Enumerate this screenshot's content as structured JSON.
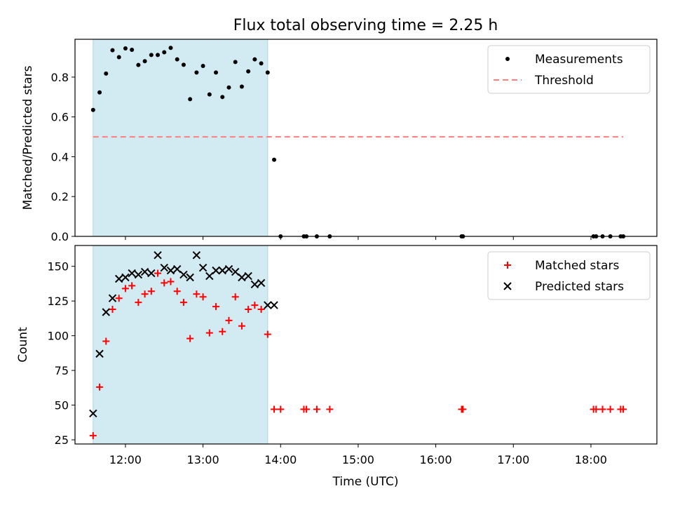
{
  "title": "Flux total observing time = 2.25 h",
  "x_label": "Time (UTC)",
  "x_ticks": [
    "12:00",
    "13:00",
    "14:00",
    "15:00",
    "16:00",
    "17:00",
    "18:00"
  ],
  "colors": {
    "shade": "#add8e6",
    "measurement": "#000000",
    "threshold": "#ff7f7f",
    "matched": "#ff0000",
    "predicted": "#000000"
  },
  "chart_data": [
    {
      "type": "scatter",
      "panel": "top",
      "ylabel": "Matched/Predicted stars",
      "ylim": [
        0,
        0.99
      ],
      "yticks": [
        0.0,
        0.2,
        0.4,
        0.6,
        0.8
      ],
      "xlim": [
        "11:21",
        "18:51"
      ],
      "shaded_interval": [
        "11:35",
        "13:50"
      ],
      "legend_position": "upper right",
      "grid": false,
      "series": [
        {
          "name": "Measurements",
          "marker": "dot",
          "points": [
            [
              "11:35",
              0.635
            ],
            [
              "11:40",
              0.723
            ],
            [
              "11:45",
              0.818
            ],
            [
              "11:50",
              0.935
            ],
            [
              "11:55",
              0.9
            ],
            [
              "12:00",
              0.944
            ],
            [
              "12:05",
              0.937
            ],
            [
              "12:10",
              0.861
            ],
            [
              "12:15",
              0.88
            ],
            [
              "12:20",
              0.911
            ],
            [
              "12:25",
              0.911
            ],
            [
              "12:30",
              0.925
            ],
            [
              "12:35",
              0.947
            ],
            [
              "12:40",
              0.889
            ],
            [
              "12:45",
              0.862
            ],
            [
              "12:50",
              0.689
            ],
            [
              "12:55",
              0.823
            ],
            [
              "13:00",
              0.856
            ],
            [
              "13:05",
              0.713
            ],
            [
              "13:10",
              0.823
            ],
            [
              "13:15",
              0.7
            ],
            [
              "13:20",
              0.748
            ],
            [
              "13:25",
              0.876
            ],
            [
              "13:30",
              0.752
            ],
            [
              "13:35",
              0.829
            ],
            [
              "13:40",
              0.889
            ],
            [
              "13:45",
              0.869
            ],
            [
              "13:50",
              0.823
            ],
            [
              "13:55",
              0.385
            ],
            [
              "14:00",
              0.0
            ],
            [
              "14:18",
              0.0
            ],
            [
              "14:20",
              0.0
            ],
            [
              "14:28",
              0.0
            ],
            [
              "14:38",
              0.0
            ],
            [
              "16:20",
              0.0
            ],
            [
              "16:21",
              0.0
            ],
            [
              "18:02",
              0.0
            ],
            [
              "18:04",
              0.0
            ],
            [
              "18:09",
              0.0
            ],
            [
              "18:15",
              0.0
            ],
            [
              "18:23",
              0.0
            ],
            [
              "18:25",
              0.0
            ]
          ]
        },
        {
          "name": "Threshold",
          "style": "dashed",
          "points": [
            [
              "11:35",
              0.5
            ],
            [
              "18:25",
              0.5
            ]
          ]
        }
      ]
    },
    {
      "type": "scatter",
      "panel": "bottom",
      "ylabel": "Count",
      "ylim": [
        22,
        165
      ],
      "yticks": [
        25,
        50,
        75,
        100,
        125,
        150
      ],
      "xlim": [
        "11:21",
        "18:51"
      ],
      "shaded_interval": [
        "11:35",
        "13:50"
      ],
      "legend_position": "upper right",
      "grid": false,
      "series": [
        {
          "name": "Matched stars",
          "marker": "plus",
          "points": [
            [
              "11:35",
              28
            ],
            [
              "11:40",
              63
            ],
            [
              "11:45",
              96
            ],
            [
              "11:50",
              119
            ],
            [
              "11:55",
              127
            ],
            [
              "12:00",
              134
            ],
            [
              "12:05",
              136
            ],
            [
              "12:10",
              124
            ],
            [
              "12:15",
              130
            ],
            [
              "12:20",
              132
            ],
            [
              "12:25",
              145
            ],
            [
              "12:30",
              138
            ],
            [
              "12:35",
              139
            ],
            [
              "12:40",
              132
            ],
            [
              "12:45",
              124
            ],
            [
              "12:50",
              98
            ],
            [
              "12:55",
              130
            ],
            [
              "13:00",
              128
            ],
            [
              "13:05",
              102
            ],
            [
              "13:10",
              121
            ],
            [
              "13:15",
              103
            ],
            [
              "13:20",
              111
            ],
            [
              "13:25",
              128
            ],
            [
              "13:30",
              107
            ],
            [
              "13:35",
              119
            ],
            [
              "13:40",
              122
            ],
            [
              "13:45",
              119
            ],
            [
              "13:50",
              101
            ],
            [
              "13:55",
              47
            ],
            [
              "14:00",
              47
            ],
            [
              "14:18",
              47
            ],
            [
              "14:20",
              47
            ],
            [
              "14:28",
              47
            ],
            [
              "14:38",
              47
            ],
            [
              "16:20",
              47
            ],
            [
              "16:21",
              47
            ],
            [
              "18:02",
              47
            ],
            [
              "18:04",
              47
            ],
            [
              "18:09",
              47
            ],
            [
              "18:15",
              47
            ],
            [
              "18:23",
              47
            ],
            [
              "18:25",
              47
            ]
          ]
        },
        {
          "name": "Predicted stars",
          "marker": "x",
          "points": [
            [
              "11:35",
              44
            ],
            [
              "11:40",
              87
            ],
            [
              "11:45",
              117
            ],
            [
              "11:50",
              127
            ],
            [
              "11:55",
              141
            ],
            [
              "12:00",
              142
            ],
            [
              "12:05",
              145
            ],
            [
              "12:10",
              144
            ],
            [
              "12:15",
              146
            ],
            [
              "12:20",
              145
            ],
            [
              "12:25",
              158
            ],
            [
              "12:30",
              149
            ],
            [
              "12:35",
              147
            ],
            [
              "12:40",
              148
            ],
            [
              "12:45",
              144
            ],
            [
              "12:50",
              142
            ],
            [
              "12:55",
              158
            ],
            [
              "13:00",
              149
            ],
            [
              "13:05",
              143
            ],
            [
              "13:10",
              147
            ],
            [
              "13:15",
              147
            ],
            [
              "13:20",
              148
            ],
            [
              "13:25",
              146
            ],
            [
              "13:30",
              142
            ],
            [
              "13:35",
              143
            ],
            [
              "13:40",
              137
            ],
            [
              "13:45",
              138
            ],
            [
              "13:50",
              122
            ],
            [
              "13:55",
              122
            ]
          ]
        }
      ]
    }
  ]
}
